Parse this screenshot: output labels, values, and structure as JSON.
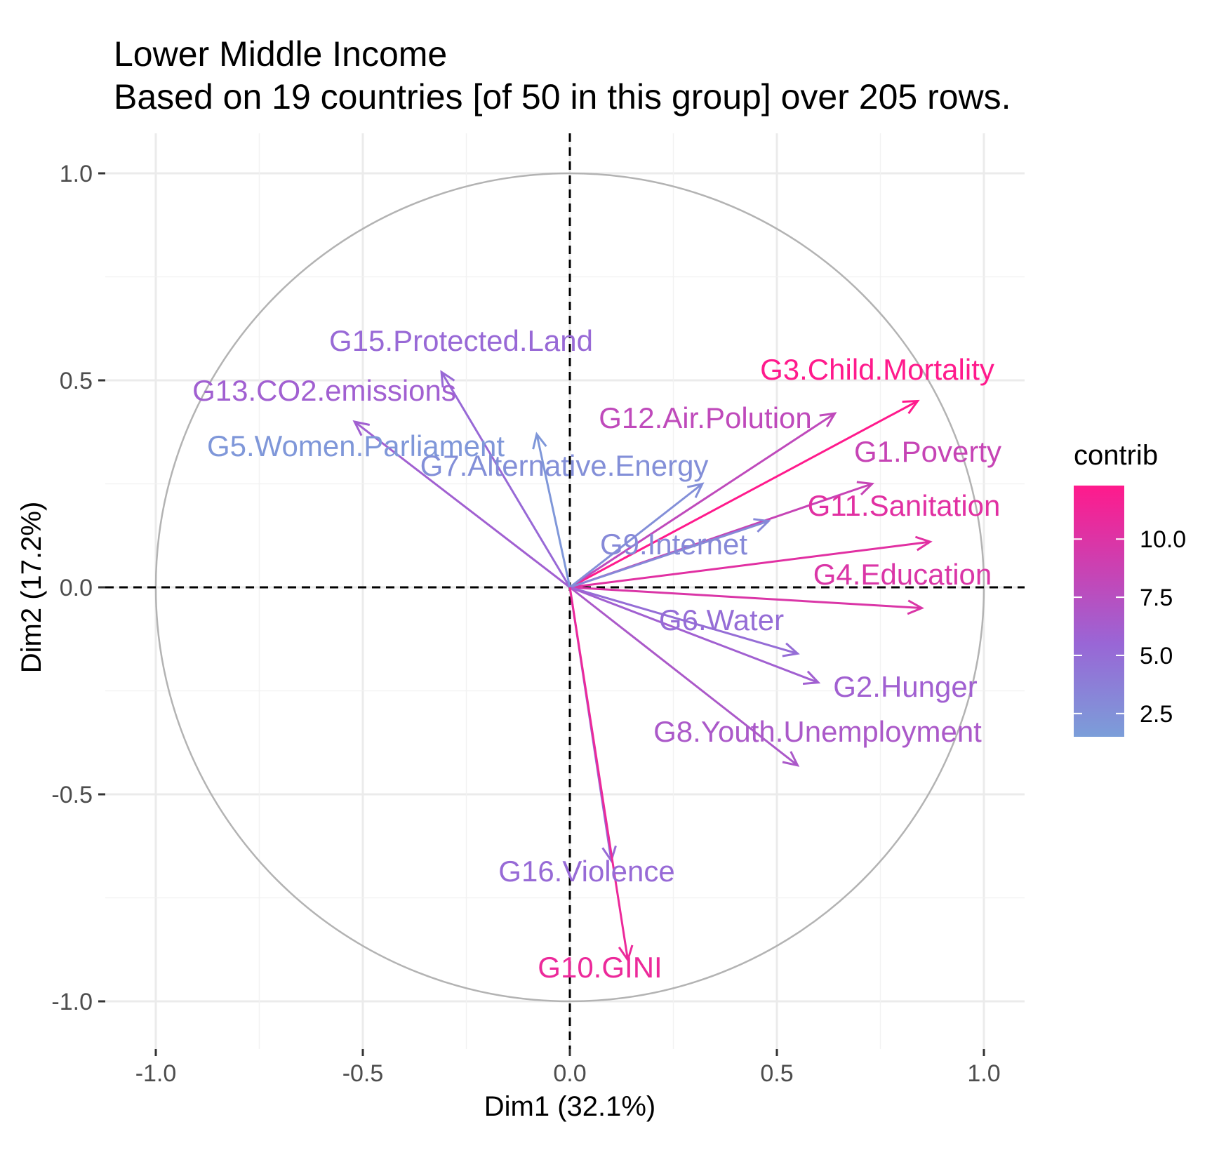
{
  "chart_data": {
    "type": "pca-variable-correlation-circle",
    "title": "Lower Middle Income",
    "subtitle": "Based on 19 countries [of 50 in this group] over 205 rows.",
    "xlabel": "Dim1 (32.1%)",
    "ylabel": "Dim2 (17.2%)",
    "xlim": [
      -1.1,
      1.1
    ],
    "ylim": [
      -1.1,
      1.1
    ],
    "x_ticks": [
      -1.0,
      -0.5,
      0.0,
      0.5,
      1.0
    ],
    "x_tick_labels": [
      "-1.0",
      "-0.5",
      "0.0",
      "0.5",
      "1.0"
    ],
    "y_ticks": [
      1.0,
      0.5,
      0.0,
      -0.5,
      -1.0
    ],
    "y_tick_labels": [
      "1.0",
      "0.5",
      "0.0",
      "-0.5",
      "-1.0"
    ],
    "grid": true,
    "reference_lines": {
      "x": 0,
      "y": 0,
      "style": "dashed"
    },
    "unit_circle": true,
    "legend": {
      "title": "contrib",
      "placement": "right",
      "range": [
        1.5,
        12.3
      ],
      "ticks": [
        10.0,
        7.5,
        5.0,
        2.5
      ],
      "tick_labels": [
        "10.0",
        "7.5",
        "5.0",
        "2.5"
      ],
      "color_low": "#7B9ED9",
      "color_mid": "#9966D6",
      "color_high": "#FF1A8C"
    },
    "variables": [
      {
        "name": "G3.Child.Mortality",
        "x": 0.84,
        "y": 0.45,
        "contrib": 12.3
      },
      {
        "name": "G12.Air.Polution",
        "x": 0.64,
        "y": 0.42,
        "contrib": 8.0
      },
      {
        "name": "G1.Poverty",
        "x": 0.73,
        "y": 0.25,
        "contrib": 8.5
      },
      {
        "name": "G11.Sanitation",
        "x": 0.87,
        "y": 0.11,
        "contrib": 10.3
      },
      {
        "name": "G4.Education",
        "x": 0.85,
        "y": -0.05,
        "contrib": 9.8
      },
      {
        "name": "G9.Internet",
        "x": 0.48,
        "y": 0.16,
        "contrib": 3.0
      },
      {
        "name": "G7.Alternative.Energy",
        "x": 0.32,
        "y": 0.25,
        "contrib": 2.6
      },
      {
        "name": "G6.Water",
        "x": 0.55,
        "y": -0.16,
        "contrib": 5.0
      },
      {
        "name": "G2.Hunger",
        "x": 0.6,
        "y": -0.23,
        "contrib": 6.0
      },
      {
        "name": "G8.Youth.Unemployment",
        "x": 0.55,
        "y": -0.43,
        "contrib": 6.7
      },
      {
        "name": "G15.Protected.Land",
        "x": -0.31,
        "y": 0.52,
        "contrib": 5.3
      },
      {
        "name": "G13.CO2.emissions",
        "x": -0.52,
        "y": 0.4,
        "contrib": 6.0
      },
      {
        "name": "G5.Women.Parliament",
        "x": -0.08,
        "y": 0.37,
        "contrib": 2.0
      },
      {
        "name": "G16.Violence",
        "x": 0.1,
        "y": -0.66,
        "contrib": 5.2
      },
      {
        "name": "G10.GINI",
        "x": 0.14,
        "y": -0.9,
        "contrib": 11.0
      }
    ]
  }
}
